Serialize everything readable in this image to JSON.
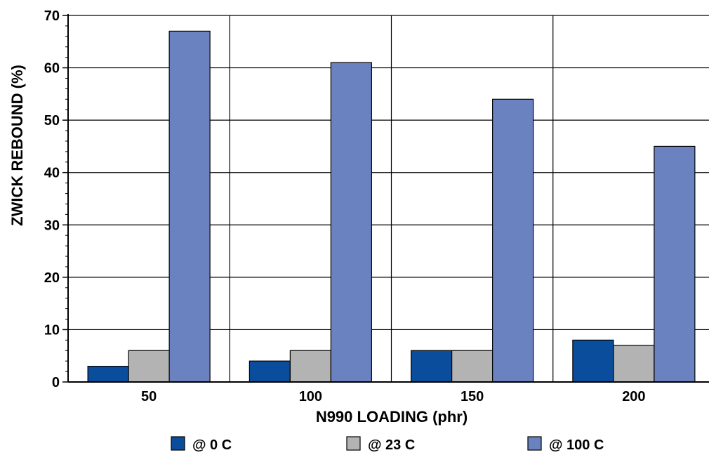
{
  "chart_data": {
    "type": "bar",
    "title": "",
    "xlabel": "N990 LOADING (phr)",
    "ylabel": "ZWICK REBOUND (%)",
    "categories": [
      "50",
      "100",
      "150",
      "200"
    ],
    "series": [
      {
        "name": "@ 0 C",
        "values": [
          3,
          4,
          6,
          8
        ],
        "color": "#0A4D9C"
      },
      {
        "name": "@ 23 C",
        "values": [
          6,
          6,
          6,
          7
        ],
        "color": "#B3B3B3"
      },
      {
        "name": "@ 100 C",
        "values": [
          67,
          61,
          54,
          45
        ],
        "color": "#6A82C0"
      }
    ],
    "ylim": [
      0,
      70
    ],
    "yticks": [
      "0",
      "10",
      "20",
      "30",
      "40",
      "50",
      "60",
      "70"
    ],
    "grid": true,
    "legend_position": "bottom"
  }
}
